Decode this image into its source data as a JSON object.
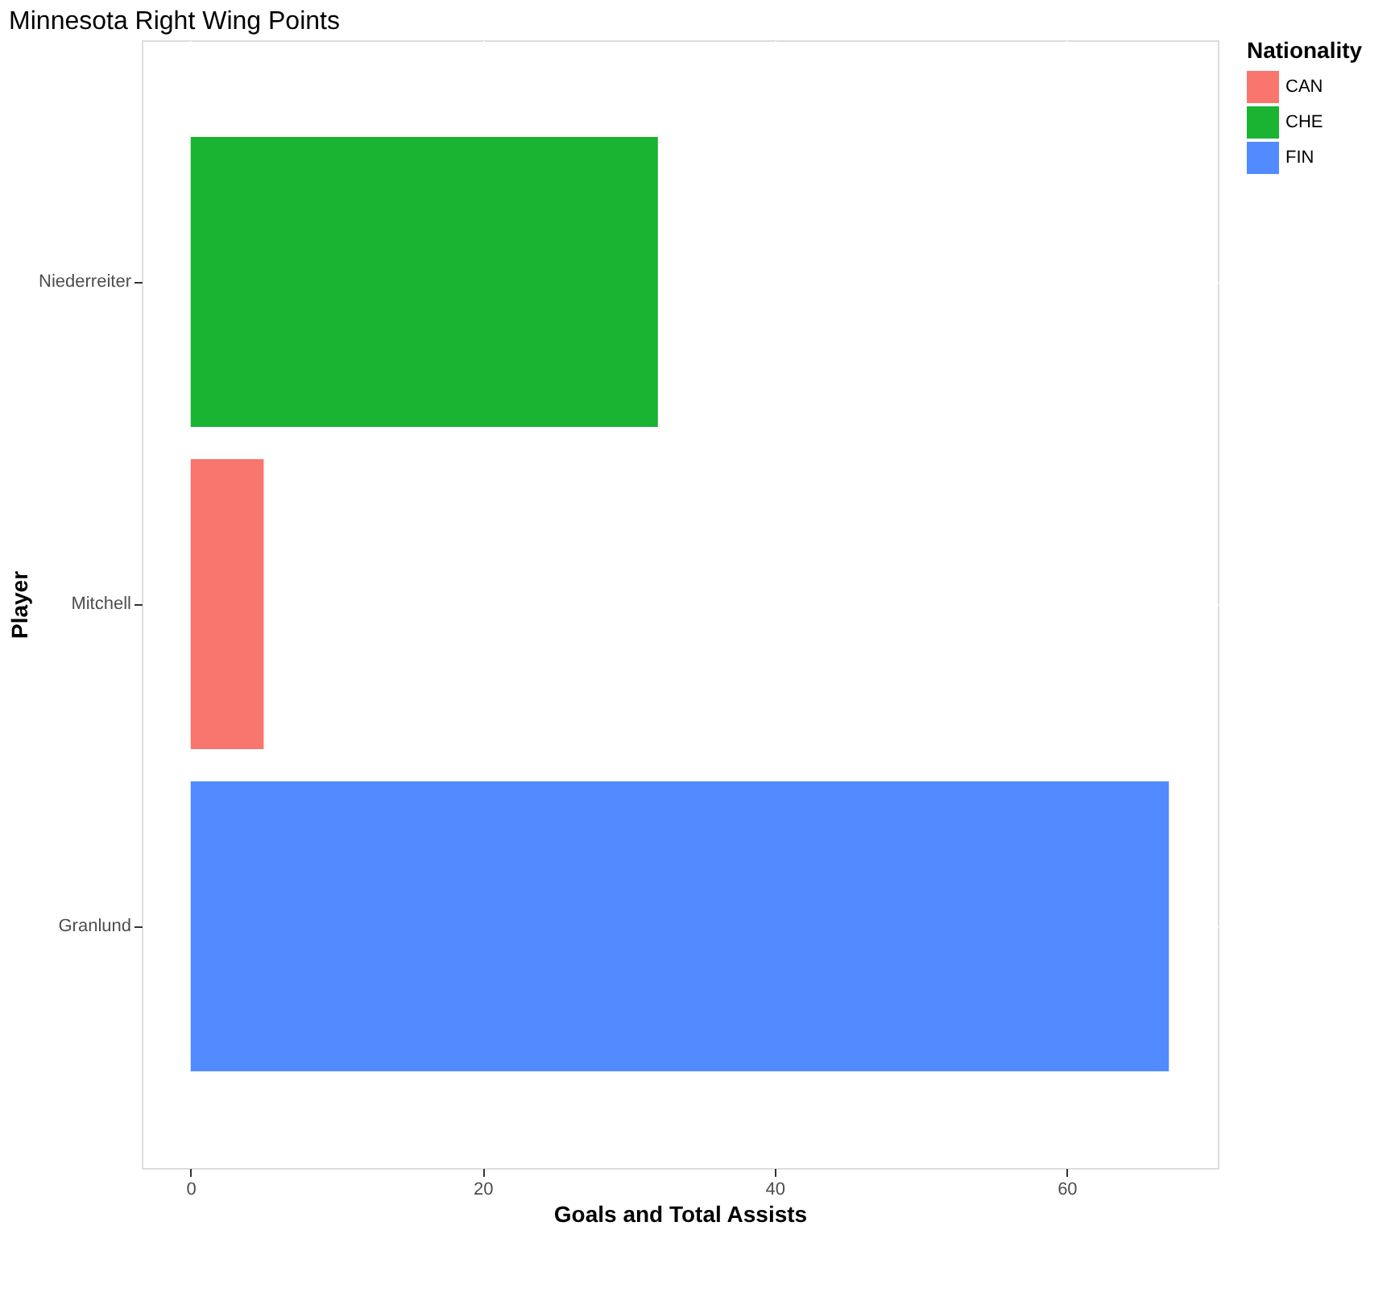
{
  "chart_data": {
    "type": "bar",
    "orientation": "horizontal",
    "title": "Minnesota Right Wing Points",
    "xlabel": "Goals and Total Assists",
    "ylabel": "Player",
    "legend_title": "Nationality",
    "categories": [
      "Niederreiter",
      "Mitchell",
      "Granlund"
    ],
    "series": [
      {
        "name": "CAN",
        "color": "#f8766d",
        "values": [
          null,
          5,
          null
        ]
      },
      {
        "name": "CHE",
        "color": "#1bb332",
        "values": [
          32,
          null,
          null
        ]
      },
      {
        "name": "FIN",
        "color": "#528bff",
        "values": [
          null,
          null,
          67
        ]
      }
    ],
    "xlim": [
      -3.35,
      70.35
    ],
    "xticks": [
      0,
      20,
      40,
      60
    ],
    "grid": true,
    "legend": "right"
  }
}
